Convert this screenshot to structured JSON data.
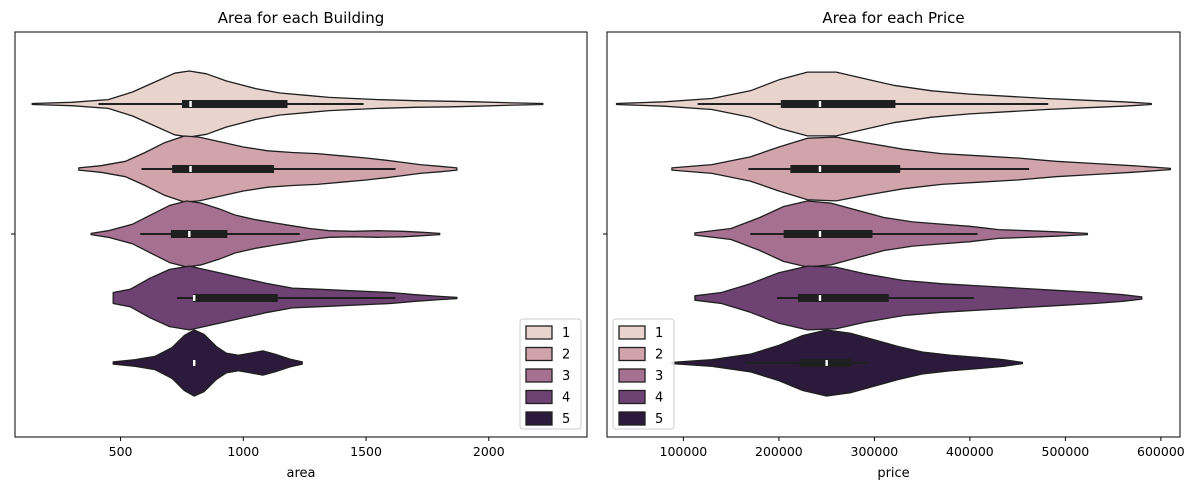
{
  "chart_data": [
    {
      "type": "violin",
      "title": "Area for each Building",
      "xlabel": "area",
      "ylabel": "",
      "xlim": [
        70,
        2400
      ],
      "xticks": [
        500,
        1000,
        1500,
        2000
      ],
      "legend_position": "lower-right",
      "grid": false,
      "series": [
        {
          "name": "1",
          "color": "#e8d3cd",
          "min": 140,
          "max": 2220,
          "whisker_low": 410,
          "whisker_high": 1490,
          "q1": 750,
          "median": 785,
          "q3": 1180,
          "density": [
            [
              140,
              0.01
            ],
            [
              300,
              0.03
            ],
            [
              450,
              0.08
            ],
            [
              550,
              0.22
            ],
            [
              650,
              0.42
            ],
            [
              720,
              0.56
            ],
            [
              780,
              0.6
            ],
            [
              850,
              0.55
            ],
            [
              930,
              0.42
            ],
            [
              1050,
              0.28
            ],
            [
              1150,
              0.2
            ],
            [
              1250,
              0.16
            ],
            [
              1350,
              0.12
            ],
            [
              1450,
              0.1
            ],
            [
              1550,
              0.08
            ],
            [
              1700,
              0.06
            ],
            [
              1850,
              0.05
            ],
            [
              1950,
              0.04
            ],
            [
              2100,
              0.02
            ],
            [
              2220,
              0.01
            ]
          ]
        },
        {
          "name": "2",
          "color": "#d1a3ab",
          "min": 330,
          "max": 1870,
          "whisker_low": 585,
          "whisker_high": 1620,
          "q1": 710,
          "median": 785,
          "q3": 1125,
          "density": [
            [
              330,
              0.02
            ],
            [
              420,
              0.06
            ],
            [
              520,
              0.14
            ],
            [
              600,
              0.3
            ],
            [
              680,
              0.48
            ],
            [
              760,
              0.6
            ],
            [
              820,
              0.58
            ],
            [
              900,
              0.5
            ],
            [
              1000,
              0.4
            ],
            [
              1100,
              0.33
            ],
            [
              1200,
              0.3
            ],
            [
              1300,
              0.28
            ],
            [
              1400,
              0.24
            ],
            [
              1500,
              0.2
            ],
            [
              1580,
              0.16
            ],
            [
              1650,
              0.12
            ],
            [
              1720,
              0.08
            ],
            [
              1800,
              0.05
            ],
            [
              1870,
              0.02
            ]
          ]
        },
        {
          "name": "3",
          "color": "#a67090",
          "min": 380,
          "max": 1800,
          "whisker_low": 580,
          "whisker_high": 1230,
          "q1": 705,
          "median": 780,
          "q3": 935,
          "density": [
            [
              380,
              0.01
            ],
            [
              450,
              0.06
            ],
            [
              550,
              0.18
            ],
            [
              620,
              0.34
            ],
            [
              700,
              0.52
            ],
            [
              770,
              0.6
            ],
            [
              830,
              0.56
            ],
            [
              900,
              0.46
            ],
            [
              970,
              0.34
            ],
            [
              1050,
              0.26
            ],
            [
              1130,
              0.2
            ],
            [
              1200,
              0.15
            ],
            [
              1270,
              0.1
            ],
            [
              1350,
              0.06
            ],
            [
              1450,
              0.05
            ],
            [
              1550,
              0.06
            ],
            [
              1650,
              0.05
            ],
            [
              1730,
              0.03
            ],
            [
              1800,
              0.01
            ]
          ]
        },
        {
          "name": "4",
          "color": "#6e4374",
          "min": 470,
          "max": 1870,
          "whisker_low": 730,
          "whisker_high": 1620,
          "q1": 795,
          "median": 800,
          "q3": 1140,
          "density": [
            [
              470,
              0.1
            ],
            [
              540,
              0.16
            ],
            [
              620,
              0.36
            ],
            [
              700,
              0.52
            ],
            [
              780,
              0.58
            ],
            [
              840,
              0.52
            ],
            [
              920,
              0.44
            ],
            [
              1000,
              0.36
            ],
            [
              1100,
              0.26
            ],
            [
              1200,
              0.18
            ],
            [
              1300,
              0.16
            ],
            [
              1400,
              0.14
            ],
            [
              1500,
              0.12
            ],
            [
              1600,
              0.1
            ],
            [
              1700,
              0.06
            ],
            [
              1800,
              0.03
            ],
            [
              1870,
              0.01
            ]
          ]
        },
        {
          "name": "5",
          "color": "#2b1a3b",
          "min": 470,
          "max": 1240,
          "whisker_low": 800,
          "whisker_high": 800,
          "q1": 800,
          "median": 800,
          "q3": 800,
          "density": [
            [
              470,
              0.02
            ],
            [
              560,
              0.06
            ],
            [
              640,
              0.12
            ],
            [
              710,
              0.28
            ],
            [
              760,
              0.5
            ],
            [
              800,
              0.6
            ],
            [
              840,
              0.52
            ],
            [
              890,
              0.3
            ],
            [
              930,
              0.18
            ],
            [
              980,
              0.14
            ],
            [
              1030,
              0.18
            ],
            [
              1080,
              0.22
            ],
            [
              1130,
              0.16
            ],
            [
              1190,
              0.07
            ],
            [
              1240,
              0.02
            ]
          ]
        }
      ]
    },
    {
      "type": "violin",
      "title": "Area for each Price",
      "xlabel": "price",
      "ylabel": "",
      "xlim": [
        20000,
        620000
      ],
      "xticks": [
        100000,
        200000,
        300000,
        400000,
        500000,
        600000
      ],
      "legend_position": "lower-left",
      "grid": false,
      "series": [
        {
          "name": "1",
          "color": "#e8d3cd",
          "min": 30000,
          "max": 590000,
          "whisker_low": 115000,
          "whisker_high": 482000,
          "q1": 202000,
          "median": 243000,
          "q3": 322000,
          "density": [
            [
              30000,
              0.01
            ],
            [
              80000,
              0.04
            ],
            [
              130000,
              0.1
            ],
            [
              170000,
              0.24
            ],
            [
              200000,
              0.44
            ],
            [
              230000,
              0.58
            ],
            [
              260000,
              0.58
            ],
            [
              290000,
              0.46
            ],
            [
              320000,
              0.34
            ],
            [
              360000,
              0.24
            ],
            [
              400000,
              0.18
            ],
            [
              440000,
              0.14
            ],
            [
              480000,
              0.1
            ],
            [
              520000,
              0.07
            ],
            [
              560000,
              0.04
            ],
            [
              590000,
              0.01
            ]
          ]
        },
        {
          "name": "2",
          "color": "#d1a3ab",
          "min": 88000,
          "max": 610000,
          "whisker_low": 168000,
          "whisker_high": 462000,
          "q1": 212000,
          "median": 243000,
          "q3": 327000,
          "density": [
            [
              88000,
              0.02
            ],
            [
              130000,
              0.08
            ],
            [
              170000,
              0.22
            ],
            [
              200000,
              0.4
            ],
            [
              230000,
              0.56
            ],
            [
              260000,
              0.58
            ],
            [
              290000,
              0.48
            ],
            [
              330000,
              0.36
            ],
            [
              370000,
              0.28
            ],
            [
              410000,
              0.24
            ],
            [
              450000,
              0.2
            ],
            [
              490000,
              0.14
            ],
            [
              530000,
              0.1
            ],
            [
              570000,
              0.06
            ],
            [
              610000,
              0.01
            ]
          ]
        },
        {
          "name": "3",
          "color": "#a67090",
          "min": 112000,
          "max": 523000,
          "whisker_low": 170000,
          "whisker_high": 408000,
          "q1": 205000,
          "median": 243000,
          "q3": 298000,
          "density": [
            [
              112000,
              0.02
            ],
            [
              150000,
              0.1
            ],
            [
              180000,
              0.3
            ],
            [
              205000,
              0.5
            ],
            [
              230000,
              0.6
            ],
            [
              255000,
              0.56
            ],
            [
              280000,
              0.44
            ],
            [
              310000,
              0.3
            ],
            [
              340000,
              0.22
            ],
            [
              370000,
              0.18
            ],
            [
              400000,
              0.14
            ],
            [
              430000,
              0.08
            ],
            [
              460000,
              0.06
            ],
            [
              490000,
              0.04
            ],
            [
              523000,
              0.01
            ]
          ]
        },
        {
          "name": "4",
          "color": "#6e4374",
          "min": 112000,
          "max": 580000,
          "whisker_low": 198000,
          "whisker_high": 404000,
          "q1": 220000,
          "median": 243000,
          "q3": 315000,
          "density": [
            [
              112000,
              0.04
            ],
            [
              140000,
              0.1
            ],
            [
              170000,
              0.26
            ],
            [
              200000,
              0.46
            ],
            [
              230000,
              0.58
            ],
            [
              260000,
              0.56
            ],
            [
              290000,
              0.44
            ],
            [
              330000,
              0.32
            ],
            [
              370000,
              0.26
            ],
            [
              410000,
              0.22
            ],
            [
              450000,
              0.18
            ],
            [
              490000,
              0.14
            ],
            [
              530000,
              0.1
            ],
            [
              560000,
              0.06
            ],
            [
              580000,
              0.02
            ]
          ]
        },
        {
          "name": "5",
          "color": "#2b1a3b",
          "min": 88000,
          "max": 455000,
          "whisker_low": 165000,
          "whisker_high": 292000,
          "q1": 222000,
          "median": 250000,
          "q3": 276000,
          "density": [
            [
              88000,
              0.01
            ],
            [
              130000,
              0.06
            ],
            [
              170000,
              0.16
            ],
            [
              200000,
              0.32
            ],
            [
              225000,
              0.5
            ],
            [
              250000,
              0.6
            ],
            [
              275000,
              0.54
            ],
            [
              300000,
              0.42
            ],
            [
              325000,
              0.3
            ],
            [
              350000,
              0.2
            ],
            [
              380000,
              0.14
            ],
            [
              410000,
              0.1
            ],
            [
              435000,
              0.06
            ],
            [
              455000,
              0.01
            ]
          ]
        }
      ]
    }
  ]
}
